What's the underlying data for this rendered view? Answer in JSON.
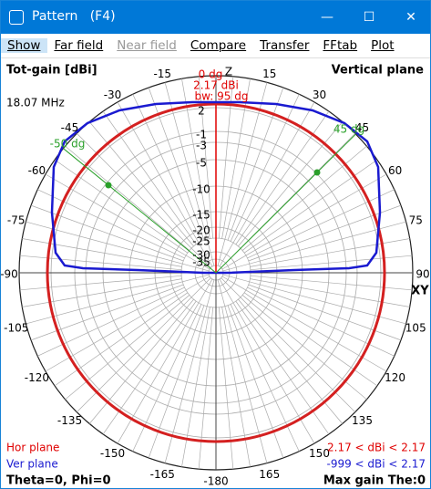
{
  "window": {
    "title": "Pattern   (F4)",
    "menu": [
      "Show",
      "Far field",
      "Near field",
      "Compare",
      "Transfer",
      "FFtab",
      "Plot"
    ]
  },
  "plot": {
    "header_left": "Tot-gain [dBi]",
    "header_right": "Vertical plane",
    "frequency": "18.07 MHz",
    "axis_top": "Z",
    "axis_right": "XY",
    "angle_labels": [
      "-15",
      "-30",
      "-45",
      "-60",
      "-75",
      "-90",
      "-105",
      "-120",
      "-135",
      "-150",
      "-165",
      "-180",
      "165",
      "150",
      "135",
      "120",
      "105",
      "90",
      "75",
      "60",
      "45",
      "30",
      "15"
    ],
    "db_labels": [
      "2",
      "-1",
      "-3",
      "-5",
      "-10",
      "-15",
      "-20",
      "-25",
      "-30",
      "-35"
    ],
    "marker": {
      "angle": "0 dg",
      "gain": "2.17 dBi",
      "beamwidth": "bw: 95 dg"
    },
    "cursor_left": "-50 dg",
    "cursor_right": "45 dg"
  },
  "footer": {
    "hor_plane": "Hor plane",
    "ver_plane": "Ver plane",
    "angles": "Theta=0, Phi=0",
    "hor_range": "2.17 < dBi < 2.17",
    "ver_range": "-999 < dBi < 2.17",
    "max_gain": "Max gain The:0"
  }
}
